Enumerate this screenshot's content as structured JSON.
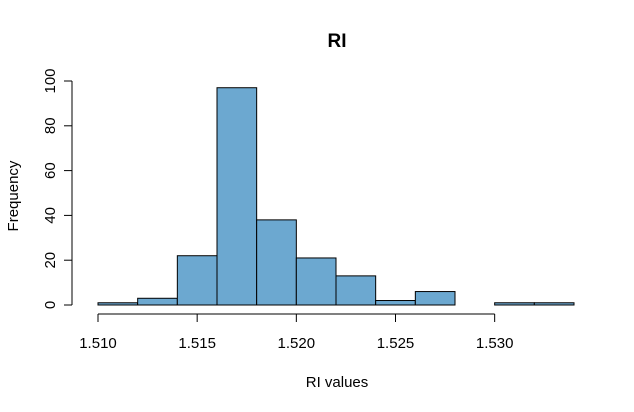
{
  "chart_data": {
    "type": "bar",
    "subtype": "histogram",
    "title": "RI",
    "xlabel": "RI values",
    "ylabel": "Frequency",
    "bins": [
      {
        "start": 1.51,
        "end": 1.512,
        "count": 1
      },
      {
        "start": 1.512,
        "end": 1.514,
        "count": 3
      },
      {
        "start": 1.514,
        "end": 1.516,
        "count": 22
      },
      {
        "start": 1.516,
        "end": 1.518,
        "count": 97
      },
      {
        "start": 1.518,
        "end": 1.52,
        "count": 38
      },
      {
        "start": 1.52,
        "end": 1.522,
        "count": 21
      },
      {
        "start": 1.522,
        "end": 1.524,
        "count": 13
      },
      {
        "start": 1.524,
        "end": 1.526,
        "count": 2
      },
      {
        "start": 1.526,
        "end": 1.528,
        "count": 6
      },
      {
        "start": 1.528,
        "end": 1.53,
        "count": 0
      },
      {
        "start": 1.53,
        "end": 1.532,
        "count": 1
      },
      {
        "start": 1.532,
        "end": 1.534,
        "count": 1
      }
    ],
    "xlim": [
      1.51,
      1.534
    ],
    "ylim": [
      0,
      100
    ],
    "x_ticks": [
      "1.510",
      "1.515",
      "1.520",
      "1.525",
      "1.530"
    ],
    "y_ticks": [
      "0",
      "20",
      "40",
      "60",
      "80",
      "100"
    ],
    "bar_color": "#6ca8d0",
    "bar_edge_color": "#000000",
    "grid": false,
    "legend": "none"
  }
}
